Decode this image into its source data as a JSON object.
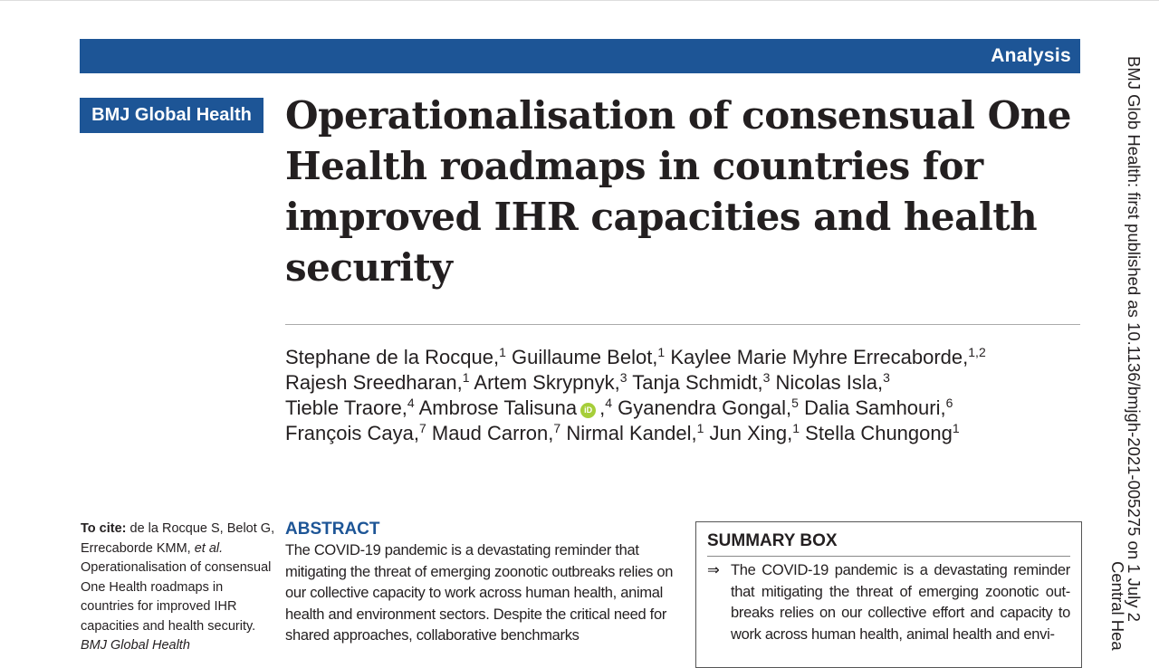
{
  "header": {
    "section": "Analysis",
    "journal": "BMJ Global Health"
  },
  "title": "Operationalisation of consensual One Health roadmaps in countries for improved IHR capacities and health security",
  "authors": [
    {
      "name": "Stephane de la Rocque,",
      "aff": "1"
    },
    {
      "name": "Guillaume Belot,",
      "aff": "1"
    },
    {
      "name": "Kaylee Marie Myhre Errecaborde,",
      "aff": "1,2"
    },
    {
      "name": "Rajesh Sreedharan,",
      "aff": "1"
    },
    {
      "name": "Artem Skrypnyk,",
      "aff": "3"
    },
    {
      "name": "Tanja Schmidt,",
      "aff": "3"
    },
    {
      "name": "Nicolas Isla,",
      "aff": "3"
    },
    {
      "name": "Tieble Traore,",
      "aff": "4"
    },
    {
      "name": "Ambrose Talisuna",
      "aff": "4",
      "orcid": "iD"
    },
    {
      "name": "Gyanendra Gongal,",
      "aff": "5"
    },
    {
      "name": "Dalia Samhouri,",
      "aff": "6"
    },
    {
      "name": "François Caya,",
      "aff": "7"
    },
    {
      "name": "Maud Carron,",
      "aff": "7"
    },
    {
      "name": "Nirmal Kandel,",
      "aff": "1"
    },
    {
      "name": "Jun Xing,",
      "aff": "1"
    },
    {
      "name": "Stella Chungong",
      "aff": "1"
    }
  ],
  "cite": {
    "label": "To cite:",
    "text1": "de la Rocque S, Belot G, Errecaborde KMM,",
    "etal": "et al.",
    "text2": "Operationalisation of consensual One Health roadmaps in countries for improved IHR capacities and health security.",
    "journal": "BMJ Global Health"
  },
  "abstract": {
    "heading": "ABSTRACT",
    "text": "The COVID-19 pandemic is a devastating reminder that mitigating the threat of emerging zoonotic outbreaks relies on our collective capacity to work across human health, animal health and environment sectors. Despite the critical need for shared approaches, collaborative benchmarks"
  },
  "summary_box": {
    "heading": "SUMMARY BOX",
    "bullet_icon": "double-arrow-right",
    "item": "The COVID-19 pandemic is a devastating reminder that mitigating the threat of emerging zoonotic out-breaks relies on our collective effort and capacity to work across human health, animal health and envi-"
  },
  "side_note": {
    "line1": "BMJ Glob Health: first published as 10.1136/bmjgh-2021-005275 on 1 July 2",
    "line2": "Central Hea"
  },
  "colors": {
    "brand_blue": "#1d5596",
    "orcid_green": "#a6ce39"
  }
}
